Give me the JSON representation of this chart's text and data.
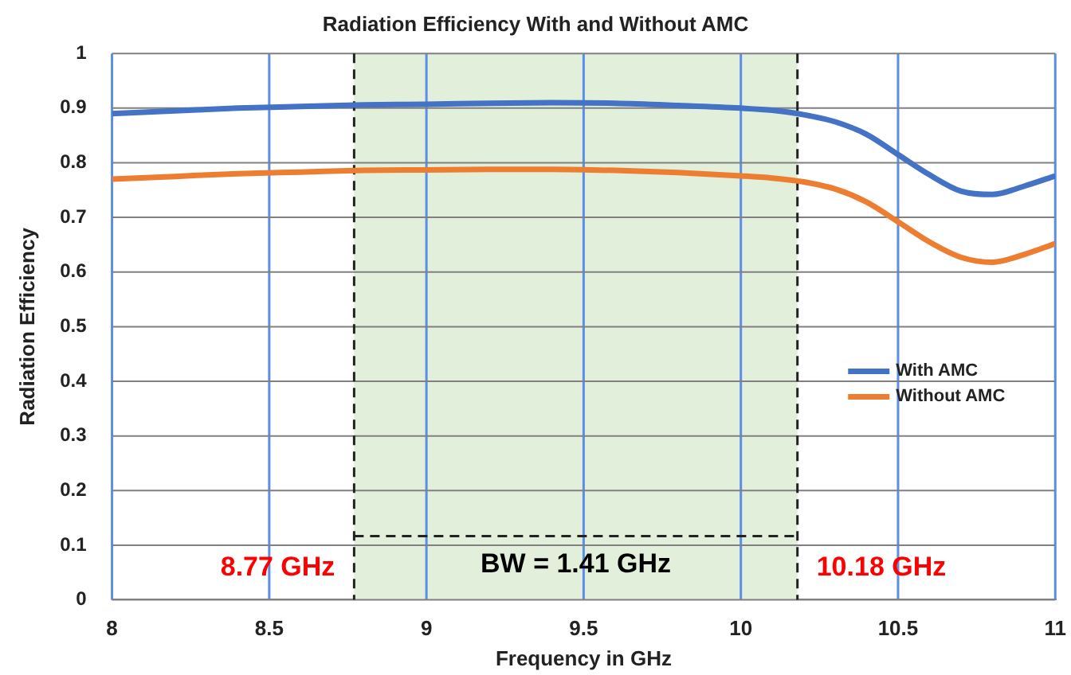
{
  "chart_data": {
    "type": "line",
    "title": "Radiation Efficiency With and Without AMC",
    "xlabel": "Frequency in GHz",
    "ylabel": "Radiation Efficiency",
    "xlim": [
      8,
      11
    ],
    "xticks": [
      8,
      8.5,
      9,
      9.5,
      10,
      10.5,
      11
    ],
    "ylim": [
      0,
      1
    ],
    "yticks": [
      0,
      0.1,
      0.2,
      0.3,
      0.4,
      0.5,
      0.6,
      0.7,
      0.8,
      0.9,
      1
    ],
    "grid": true,
    "legend": "right",
    "marker": "none",
    "line_style": "solid",
    "x": [
      8,
      8.2,
      8.4,
      8.6,
      8.8,
      9,
      9.2,
      9.4,
      9.6,
      9.8,
      10,
      10.1,
      10.2,
      10.3,
      10.4,
      10.5,
      10.6,
      10.7,
      10.8,
      10.9,
      11
    ],
    "series": [
      {
        "name": "With AMC",
        "color": "#4472c4",
        "values": [
          0.89,
          0.895,
          0.9,
          0.903,
          0.906,
          0.907,
          0.909,
          0.91,
          0.909,
          0.905,
          0.9,
          0.896,
          0.888,
          0.875,
          0.852,
          0.815,
          0.778,
          0.748,
          0.742,
          0.757,
          0.776
        ]
      },
      {
        "name": "Without AMC",
        "color": "#ed7d31",
        "values": [
          0.77,
          0.775,
          0.78,
          0.783,
          0.786,
          0.787,
          0.788,
          0.788,
          0.786,
          0.782,
          0.776,
          0.772,
          0.765,
          0.752,
          0.728,
          0.692,
          0.655,
          0.627,
          0.618,
          0.632,
          0.652
        ]
      }
    ],
    "bands": [
      {
        "axis": "x",
        "from": 8.77,
        "to": 10.18,
        "color": "#e2efda"
      }
    ],
    "ref_lines": [
      {
        "axis": "x",
        "value": 8.77,
        "label": "8.77 GHz",
        "color": "#222222",
        "line_style": "dashed"
      },
      {
        "axis": "x",
        "value": 10.18,
        "label": "10.18 GHz",
        "color": "#222222",
        "line_style": "dashed"
      }
    ],
    "annotations": [
      "BW = 1.41 GHz"
    ]
  }
}
